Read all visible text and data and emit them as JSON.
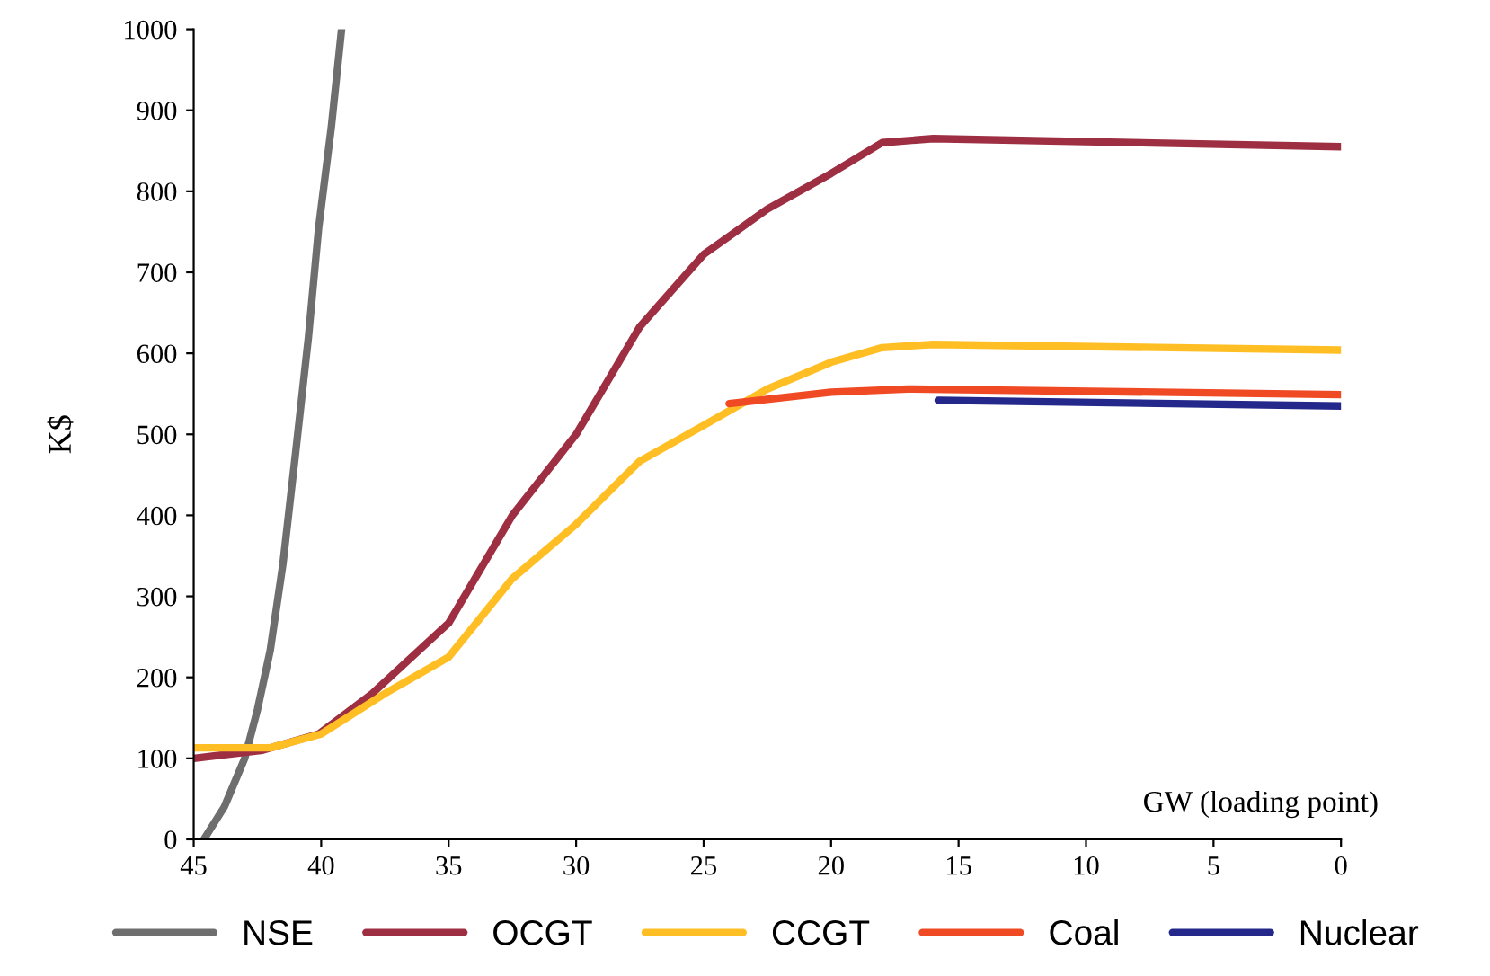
{
  "chart_data": {
    "type": "line",
    "xlabel": "GW (loading point)",
    "ylabel": "K$",
    "xlim": [
      45,
      0
    ],
    "xticks": [
      45,
      40,
      35,
      30,
      25,
      20,
      15,
      10,
      5,
      0
    ],
    "ylim": [
      0,
      1000
    ],
    "yticks": [
      0,
      100,
      200,
      300,
      400,
      500,
      600,
      700,
      800,
      900,
      1000
    ],
    "grid": false,
    "legend": "bottom",
    "marker": "none",
    "line_style": "solid",
    "series": [
      {
        "name": "NSE",
        "color": "#6e6e6e",
        "x": [
          44.6,
          43.8,
          43,
          42.5,
          42,
          41.5,
          41,
          40.5,
          40.1,
          39.6,
          39.2
        ],
        "values": [
          0,
          40,
          100,
          160,
          233,
          340,
          478,
          620,
          755,
          880,
          1000
        ]
      },
      {
        "name": "OCGT",
        "color": "#9e2f42",
        "x": [
          45,
          42.3,
          40.1,
          38,
          35,
          32.5,
          30,
          27.5,
          25,
          22.5,
          20,
          18,
          16,
          0
        ],
        "values": [
          100,
          110,
          130,
          180,
          267,
          400,
          500,
          633,
          722,
          778,
          822,
          860,
          865,
          855
        ]
      },
      {
        "name": "CCGT",
        "color": "#ffbf24",
        "x": [
          45,
          42,
          40,
          37.5,
          35,
          32.5,
          30,
          27.5,
          25,
          22.5,
          20,
          18,
          16,
          0
        ],
        "values": [
          113,
          113,
          130,
          180,
          225,
          322,
          389,
          467,
          511,
          556,
          589,
          607,
          611,
          604
        ]
      },
      {
        "name": "Coal",
        "color": "#f04a24",
        "x": [
          24,
          20,
          17,
          0
        ],
        "values": [
          538,
          552,
          556,
          549
        ]
      },
      {
        "name": "Nuclear",
        "color": "#24288a",
        "x": [
          15.8,
          0
        ],
        "values": [
          542,
          535
        ]
      }
    ]
  }
}
